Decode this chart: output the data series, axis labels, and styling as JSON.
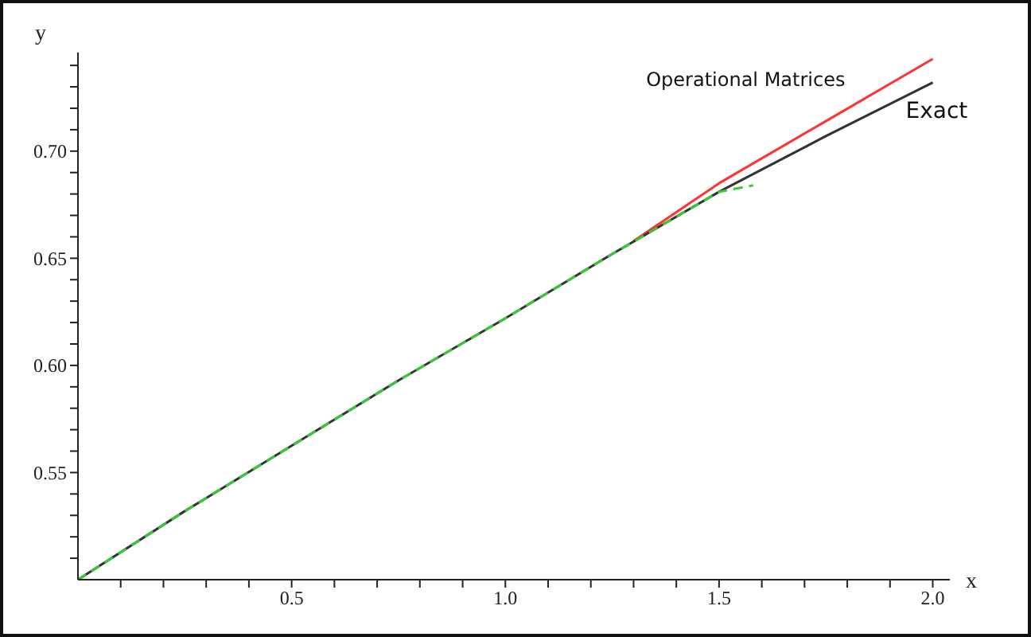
{
  "chart_data": {
    "type": "line",
    "xlabel": "x",
    "ylabel": "y",
    "legend": false,
    "grid": false,
    "marker": "none",
    "xlim": [
      0,
      2.04
    ],
    "ylim": [
      0.5,
      0.746
    ],
    "xticks": [
      {
        "value": 0.1,
        "label": null
      },
      {
        "value": 0.2,
        "label": null
      },
      {
        "value": 0.3,
        "label": null
      },
      {
        "value": 0.4,
        "label": null
      },
      {
        "value": 0.5,
        "label": "0.5"
      },
      {
        "value": 0.6,
        "label": null
      },
      {
        "value": 0.7,
        "label": null
      },
      {
        "value": 0.8,
        "label": null
      },
      {
        "value": 0.9,
        "label": null
      },
      {
        "value": 1,
        "label": "1.0"
      },
      {
        "value": 1.1,
        "label": null
      },
      {
        "value": 1.2,
        "label": null
      },
      {
        "value": 1.3,
        "label": null
      },
      {
        "value": 1.4,
        "label": null
      },
      {
        "value": 1.5,
        "label": "1.5"
      },
      {
        "value": 1.6,
        "label": null
      },
      {
        "value": 1.7,
        "label": null
      },
      {
        "value": 1.8,
        "label": null
      },
      {
        "value": 1.9,
        "label": null
      },
      {
        "value": 2,
        "label": "2.0"
      }
    ],
    "yticks": [
      {
        "value": 0.51,
        "label": null
      },
      {
        "value": 0.52,
        "label": null
      },
      {
        "value": 0.53,
        "label": null
      },
      {
        "value": 0.54,
        "label": null
      },
      {
        "value": 0.55,
        "label": "0.55"
      },
      {
        "value": 0.56,
        "label": null
      },
      {
        "value": 0.57,
        "label": null
      },
      {
        "value": 0.58,
        "label": null
      },
      {
        "value": 0.59,
        "label": null
      },
      {
        "value": 0.6,
        "label": "0.60"
      },
      {
        "value": 0.61,
        "label": null
      },
      {
        "value": 0.62,
        "label": null
      },
      {
        "value": 0.63,
        "label": null
      },
      {
        "value": 0.64,
        "label": null
      },
      {
        "value": 0.65,
        "label": "0.65"
      },
      {
        "value": 0.66,
        "label": null
      },
      {
        "value": 0.67,
        "label": null
      },
      {
        "value": 0.68,
        "label": null
      },
      {
        "value": 0.69,
        "label": null
      },
      {
        "value": 0.7,
        "label": "0.70"
      },
      {
        "value": 0.71,
        "label": null
      },
      {
        "value": 0.72,
        "label": null
      },
      {
        "value": 0.73,
        "label": null
      },
      {
        "value": 0.74,
        "label": null
      }
    ],
    "series": [
      {
        "name": "Operational Matrices",
        "color": "#ff3333",
        "line_style": "solid",
        "x": [
          1.3,
          1.5,
          1.75,
          2
        ],
        "values": [
          0.658,
          0.685,
          0.714,
          0.743
        ]
      },
      {
        "name": "Exact",
        "color": "#333333",
        "line_style": "solid",
        "x": [
          0,
          0.25,
          0.5,
          0.75,
          1,
          1.25,
          1.5,
          1.75,
          2
        ],
        "values": [
          0.5,
          0.532,
          0.5625,
          0.593,
          0.622,
          0.652,
          0.681,
          0.707,
          0.732
        ]
      },
      {
        "color": "#33cc33",
        "line_style": "dashed",
        "x": [
          0,
          0.25,
          0.5,
          0.75,
          1,
          1.25,
          1.5,
          1.58
        ],
        "values": [
          0.5,
          0.532,
          0.5625,
          0.593,
          0.622,
          0.652,
          0.681,
          0.684
        ]
      }
    ]
  }
}
